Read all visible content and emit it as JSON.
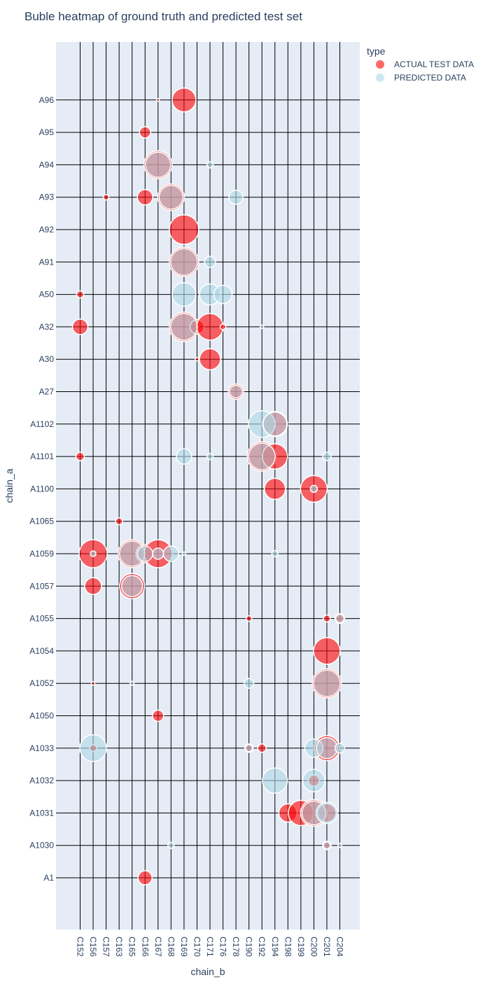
{
  "chart_data": {
    "type": "scatter",
    "title": "Buble heatmap of ground truth and predicted test set",
    "xlabel": "chain_b",
    "ylabel": "chain_a",
    "grid": true,
    "legend_placement": "top-right",
    "legend_title": "type",
    "x_categories": [
      "C152",
      "C156",
      "C157",
      "C163",
      "C165",
      "C166",
      "C167",
      "C168",
      "C169",
      "C170",
      "C171",
      "C176",
      "C178",
      "C190",
      "C192",
      "C194",
      "C198",
      "C199",
      "C200",
      "C201",
      "C204"
    ],
    "y_categories": [
      "A1",
      "A1030",
      "A1031",
      "A1032",
      "A1033",
      "A1050",
      "A1052",
      "A1054",
      "A1055",
      "A1057",
      "A1059",
      "A1065",
      "A1100",
      "A1101",
      "A1102",
      "A27",
      "A30",
      "A32",
      "A50",
      "A91",
      "A92",
      "A93",
      "A94",
      "A95",
      "A96"
    ],
    "series": [
      {
        "name": "ACTUAL TEST DATA",
        "color": "#ff0000",
        "points": [
          {
            "x": "C167",
            "y": "A96",
            "size": 4
          },
          {
            "x": "C169",
            "y": "A96",
            "size": 34
          },
          {
            "x": "C166",
            "y": "A95",
            "size": 16
          },
          {
            "x": "C167",
            "y": "A94",
            "size": 40
          },
          {
            "x": "C157",
            "y": "A93",
            "size": 8
          },
          {
            "x": "C166",
            "y": "A93",
            "size": 22
          },
          {
            "x": "C168",
            "y": "A93",
            "size": 38
          },
          {
            "x": "C169",
            "y": "A92",
            "size": 42
          },
          {
            "x": "C169",
            "y": "A91",
            "size": 42
          },
          {
            "x": "C152",
            "y": "A50",
            "size": 10
          },
          {
            "x": "C152",
            "y": "A32",
            "size": 22
          },
          {
            "x": "C169",
            "y": "A32",
            "size": 42
          },
          {
            "x": "C170",
            "y": "A32",
            "size": 20
          },
          {
            "x": "C171",
            "y": "A32",
            "size": 38
          },
          {
            "x": "C176",
            "y": "A32",
            "size": 8
          },
          {
            "x": "C170",
            "y": "A30",
            "size": 5
          },
          {
            "x": "C171",
            "y": "A30",
            "size": 30
          },
          {
            "x": "C178",
            "y": "A27",
            "size": 22
          },
          {
            "x": "C194",
            "y": "A1102",
            "size": 36
          },
          {
            "x": "C152",
            "y": "A1101",
            "size": 12
          },
          {
            "x": "C192",
            "y": "A1101",
            "size": 42
          },
          {
            "x": "C194",
            "y": "A1101",
            "size": 36
          },
          {
            "x": "C194",
            "y": "A1100",
            "size": 30
          },
          {
            "x": "C200",
            "y": "A1100",
            "size": 38
          },
          {
            "x": "C163",
            "y": "A1065",
            "size": 10
          },
          {
            "x": "C156",
            "y": "A1059",
            "size": 40
          },
          {
            "x": "C165",
            "y": "A1059",
            "size": 40
          },
          {
            "x": "C166",
            "y": "A1059",
            "size": 26
          },
          {
            "x": "C167",
            "y": "A1059",
            "size": 40
          },
          {
            "x": "C156",
            "y": "A1057",
            "size": 24
          },
          {
            "x": "C165",
            "y": "A1057",
            "size": 36
          },
          {
            "x": "C190",
            "y": "A1055",
            "size": 8
          },
          {
            "x": "C201",
            "y": "A1055",
            "size": 10
          },
          {
            "x": "C204",
            "y": "A1055",
            "size": 14
          },
          {
            "x": "C201",
            "y": "A1054",
            "size": 38
          },
          {
            "x": "C156",
            "y": "A1052",
            "size": 5
          },
          {
            "x": "C201",
            "y": "A1052",
            "size": 42
          },
          {
            "x": "C167",
            "y": "A1050",
            "size": 16
          },
          {
            "x": "C156",
            "y": "A1033",
            "size": 10
          },
          {
            "x": "C190",
            "y": "A1033",
            "size": 12
          },
          {
            "x": "C192",
            "y": "A1033",
            "size": 12
          },
          {
            "x": "C201",
            "y": "A1033",
            "size": 36
          },
          {
            "x": "C200",
            "y": "A1032",
            "size": 16
          },
          {
            "x": "C198",
            "y": "A1031",
            "size": 26
          },
          {
            "x": "C199",
            "y": "A1031",
            "size": 36
          },
          {
            "x": "C200",
            "y": "A1031",
            "size": 38
          },
          {
            "x": "C201",
            "y": "A1031",
            "size": 26
          },
          {
            "x": "C201",
            "y": "A1030",
            "size": 12
          },
          {
            "x": "C166",
            "y": "A1",
            "size": 20
          }
        ]
      },
      {
        "name": "PREDICTED DATA",
        "color": "#add8e6",
        "points": [
          {
            "x": "C167",
            "y": "A94",
            "size": 36
          },
          {
            "x": "C171",
            "y": "A94",
            "size": 9
          },
          {
            "x": "C168",
            "y": "A93",
            "size": 34
          },
          {
            "x": "C178",
            "y": "A93",
            "size": 20
          },
          {
            "x": "C169",
            "y": "A91",
            "size": 38
          },
          {
            "x": "C171",
            "y": "A91",
            "size": 16
          },
          {
            "x": "C169",
            "y": "A50",
            "size": 34
          },
          {
            "x": "C171",
            "y": "A50",
            "size": 30
          },
          {
            "x": "C176",
            "y": "A50",
            "size": 26
          },
          {
            "x": "C169",
            "y": "A32",
            "size": 38
          },
          {
            "x": "C192",
            "y": "A32",
            "size": 5
          },
          {
            "x": "C178",
            "y": "A27",
            "size": 18
          },
          {
            "x": "C192",
            "y": "A1102",
            "size": 38
          },
          {
            "x": "C194",
            "y": "A1102",
            "size": 34
          },
          {
            "x": "C169",
            "y": "A1101",
            "size": 22
          },
          {
            "x": "C171",
            "y": "A1101",
            "size": 9
          },
          {
            "x": "C192",
            "y": "A1101",
            "size": 38
          },
          {
            "x": "C201",
            "y": "A1101",
            "size": 12
          },
          {
            "x": "C200",
            "y": "A1100",
            "size": 10
          },
          {
            "x": "C156",
            "y": "A1059",
            "size": 8
          },
          {
            "x": "C165",
            "y": "A1059",
            "size": 36
          },
          {
            "x": "C166",
            "y": "A1059",
            "size": 22
          },
          {
            "x": "C167",
            "y": "A1059",
            "size": 16
          },
          {
            "x": "C168",
            "y": "A1059",
            "size": 22
          },
          {
            "x": "C169",
            "y": "A1059",
            "size": 5
          },
          {
            "x": "C194",
            "y": "A1059",
            "size": 9
          },
          {
            "x": "C165",
            "y": "A1057",
            "size": 30
          },
          {
            "x": "C204",
            "y": "A1055",
            "size": 12
          },
          {
            "x": "C165",
            "y": "A1052",
            "size": 6
          },
          {
            "x": "C190",
            "y": "A1052",
            "size": 14
          },
          {
            "x": "C201",
            "y": "A1052",
            "size": 38
          },
          {
            "x": "C156",
            "y": "A1033",
            "size": 38
          },
          {
            "x": "C190",
            "y": "A1033",
            "size": 10
          },
          {
            "x": "C200",
            "y": "A1033",
            "size": 26
          },
          {
            "x": "C201",
            "y": "A1033",
            "size": 30
          },
          {
            "x": "C204",
            "y": "A1033",
            "size": 14
          },
          {
            "x": "C194",
            "y": "A1032",
            "size": 36
          },
          {
            "x": "C200",
            "y": "A1032",
            "size": 32
          },
          {
            "x": "C200",
            "y": "A1031",
            "size": 34
          },
          {
            "x": "C201",
            "y": "A1031",
            "size": 30
          },
          {
            "x": "C168",
            "y": "A1030",
            "size": 9
          },
          {
            "x": "C201",
            "y": "A1030",
            "size": 10
          },
          {
            "x": "C204",
            "y": "A1030",
            "size": 6
          }
        ]
      }
    ]
  }
}
